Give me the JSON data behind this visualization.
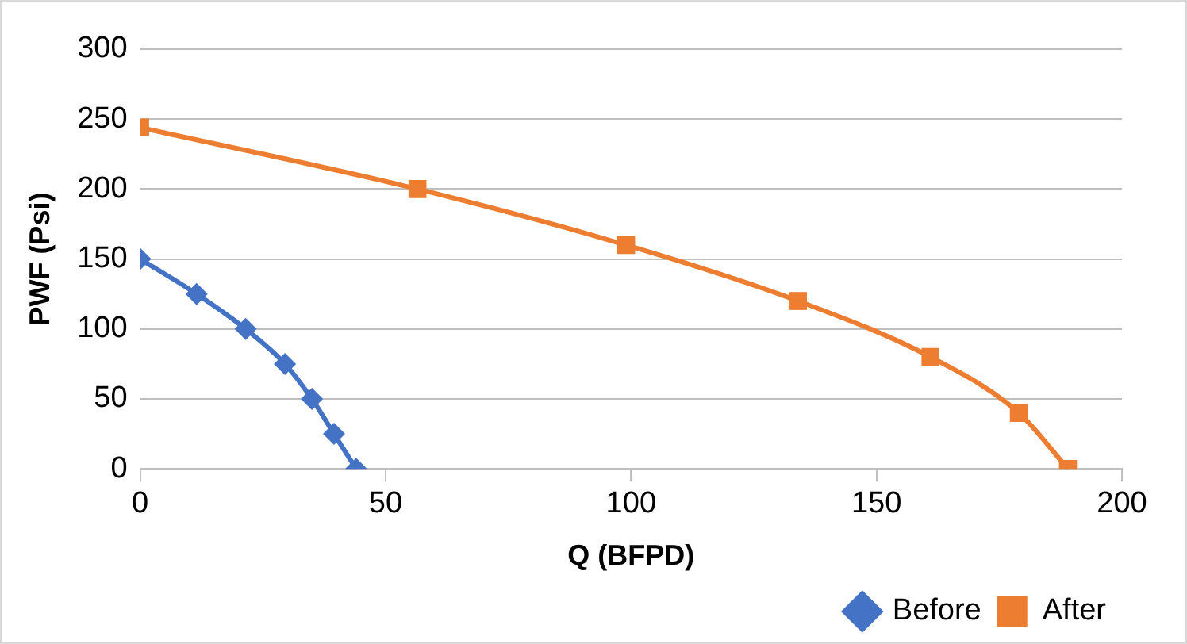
{
  "chart_data": {
    "type": "line",
    "xlabel": "Q (BFPD)",
    "ylabel": "PWF (Psi)",
    "xlim": [
      0,
      200
    ],
    "xticks": [
      0,
      50,
      100,
      150,
      200
    ],
    "ylim": [
      0,
      300
    ],
    "yticks": [
      0,
      50,
      100,
      150,
      200,
      250,
      300
    ],
    "grid": "y",
    "legend": "bottom right",
    "series": [
      {
        "name": "Before",
        "marker": "diamond",
        "color": "#4472c4",
        "x": [
          0,
          11.5,
          21.5,
          29.5,
          35,
          39.5,
          44
        ],
        "values": [
          150,
          125,
          100,
          75,
          50,
          25,
          0
        ]
      },
      {
        "name": "After",
        "marker": "square",
        "color": "#ed7d31",
        "x": [
          0,
          56.5,
          99,
          134,
          161,
          179,
          189
        ],
        "values": [
          244,
          200,
          160,
          120,
          80,
          40,
          0
        ]
      }
    ]
  }
}
